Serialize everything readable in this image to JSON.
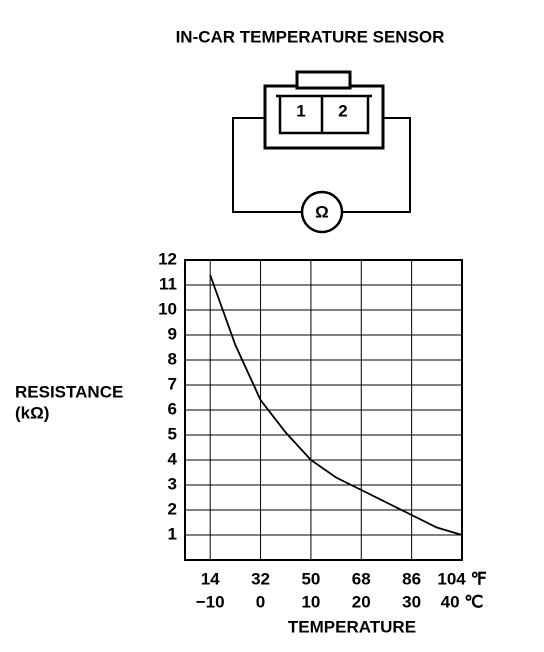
{
  "chart_data": {
    "type": "line",
    "title": "IN-CAR TEMPERATURE SENSOR",
    "diagram": {
      "pins": [
        "1",
        "2"
      ],
      "meter": "Ω"
    },
    "y_label": [
      "RESISTANCE",
      "(kΩ)"
    ],
    "x_label": "TEMPERATURE",
    "x": [
      -10,
      -5,
      0,
      5,
      10,
      15,
      20,
      25,
      30,
      35,
      40
    ],
    "series": [
      {
        "color": "#000000",
        "values": [
          11.4,
          8.6,
          6.4,
          5.1,
          4.0,
          3.3,
          2.8,
          2.3,
          1.8,
          1.3,
          1.0
        ]
      }
    ],
    "xlim": [
      -15,
      40
    ],
    "xticks": [
      {
        "value": -10,
        "label": "−10"
      },
      0,
      10,
      20,
      30,
      {
        "value": 40,
        "label": "40 ℃"
      }
    ],
    "x2lim": [
      5,
      104
    ],
    "x2ticks": [
      14,
      32,
      50,
      68,
      86,
      {
        "value": 104,
        "label": "104 ℉"
      }
    ],
    "ylim": [
      0,
      12
    ],
    "yticks": [
      1,
      2,
      3,
      4,
      5,
      6,
      7,
      8,
      9,
      10,
      11,
      12
    ],
    "grid": true
  }
}
